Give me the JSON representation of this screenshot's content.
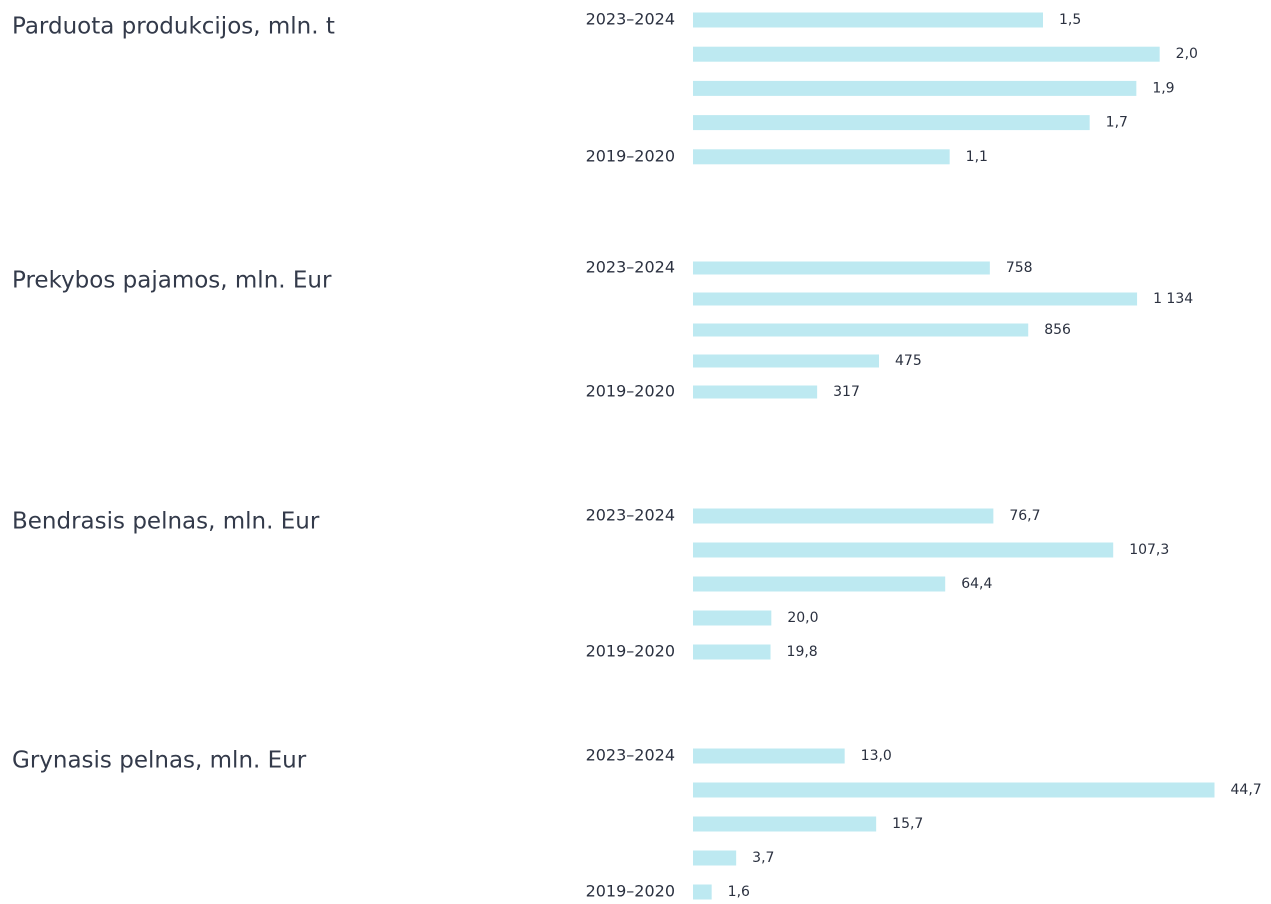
{
  "chart_data": [
    {
      "type": "bar",
      "orientation": "horizontal",
      "title": "Parduota produkcijos, mln. t",
      "categories": [
        "2023–2024",
        null,
        null,
        null,
        "2019–2020"
      ],
      "values": [
        1.5,
        2.0,
        1.9,
        1.7,
        1.1
      ],
      "value_labels": [
        "1,5",
        "2,0",
        "1,9",
        "1,7",
        "1,1"
      ],
      "color": "#bde9f1",
      "xlim": [
        0,
        2.4
      ]
    },
    {
      "type": "bar",
      "orientation": "horizontal",
      "title": "Prekybos pajamos, mln. Eur",
      "categories": [
        "2023–2024",
        null,
        null,
        null,
        "2019–2020"
      ],
      "values": [
        758,
        1134,
        856,
        475,
        317
      ],
      "value_labels": [
        "758",
        "1 134",
        "856",
        "475",
        "317"
      ],
      "color": "#bde9f1",
      "xlim": [
        0,
        1430
      ]
    },
    {
      "type": "bar",
      "orientation": "horizontal",
      "title": "Bendrasis pelnas, mln. Eur",
      "categories": [
        "2023–2024",
        null,
        null,
        null,
        "2019–2020"
      ],
      "values": [
        76.7,
        107.3,
        64.4,
        20.0,
        19.8
      ],
      "value_labels": [
        "76,7",
        "107,3",
        "64,4",
        "20,0",
        "19,8"
      ],
      "color": "#bde9f1",
      "xlim": [
        0,
        143
      ]
    },
    {
      "type": "bar",
      "orientation": "horizontal",
      "title": "Grynasis pelnas, mln. Eur",
      "categories": [
        "2023–2024",
        null,
        null,
        null,
        "2019–2020"
      ],
      "values": [
        13.0,
        44.7,
        15.7,
        3.7,
        1.6
      ],
      "value_labels": [
        "13,0",
        "44,7",
        "15,7",
        "3,7",
        "1,6"
      ],
      "color": "#bde9f1",
      "xlim": [
        0,
        48
      ]
    }
  ]
}
